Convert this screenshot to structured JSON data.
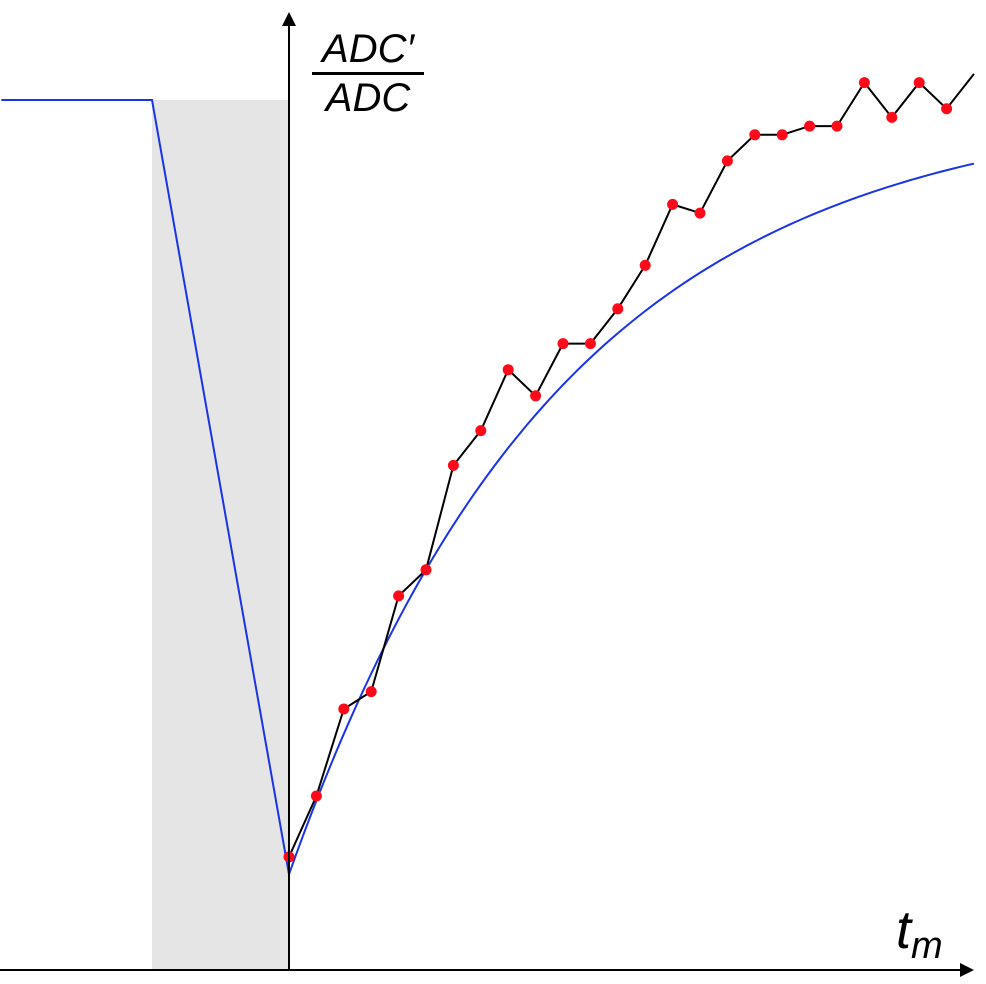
{
  "chart_data": {
    "type": "line",
    "title": "",
    "xlabel": "t",
    "xlabel_subscript": "m",
    "ylabel_numerator": "ADC′",
    "ylabel_denominator": "ADC",
    "xlim": [
      -10,
      50
    ],
    "ylim": [
      0,
      1
    ],
    "grid": false,
    "legend": "none",
    "shaded_region": {
      "x_from": -10,
      "x_to": 0,
      "color": "#e5e5e5"
    },
    "baseline": {
      "name": "",
      "color": "#1a33e6",
      "x": [
        -21,
        -10,
        0
      ],
      "y": [
        1.0,
        1.0,
        0.11
      ]
    },
    "fit": {
      "name": "",
      "color": "#1a33e6",
      "x0": 0,
      "y0": 0.11,
      "y_inf": 1.0,
      "tau": 20
    },
    "measured": {
      "name": "",
      "line_color": "#000000",
      "marker_color": "#ff0a1a",
      "x": [
        0,
        2,
        4,
        6,
        8,
        10,
        12,
        14,
        16,
        18,
        20,
        22,
        24,
        26,
        28,
        30,
        32,
        34,
        36,
        38,
        40,
        42,
        44,
        46,
        48,
        50
      ],
      "y": [
        0.13,
        0.2,
        0.3,
        0.32,
        0.43,
        0.46,
        0.58,
        0.62,
        0.69,
        0.66,
        0.72,
        0.72,
        0.76,
        0.81,
        0.88,
        0.87,
        0.93,
        0.96,
        0.96,
        0.97,
        0.97,
        1.02,
        0.98,
        1.02,
        0.99,
        1.03
      ]
    }
  }
}
